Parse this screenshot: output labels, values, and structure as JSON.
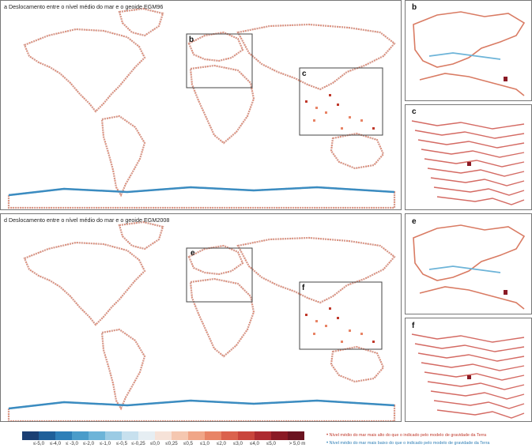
{
  "panels": {
    "a": {
      "title": "a Deslocamento entre o nível médio do mar e o geoide EGM96"
    },
    "b": {
      "label": "b"
    },
    "c": {
      "label": "c"
    },
    "d": {
      "title": "d Deslocamento entre o nível médio do mar e o geoide EGM2008"
    },
    "e": {
      "label": "e"
    },
    "f": {
      "label": "f"
    }
  },
  "inset_boxes_top": {
    "b": "b",
    "c": "c"
  },
  "inset_boxes_bottom": {
    "e": "e",
    "f": "f"
  },
  "legend": {
    "unit": "m",
    "colors": [
      "#1b3f73",
      "#1f5f99",
      "#2e7fb8",
      "#4a9cca",
      "#6db4d8",
      "#9bcbe4",
      "#c7e0ee",
      "#e6eef3",
      "#f6e2d8",
      "#f5c7b0",
      "#f0a688",
      "#e88466",
      "#db624d",
      "#c9453c",
      "#ad2a30",
      "#8a1a25",
      "#6a1320"
    ],
    "ticks": [
      "≤-5,0",
      "≤-4,0",
      "≤ -3,0",
      "≤-2,0",
      "≤-1,0",
      "≤-0,5",
      "≤-0,25",
      "≤0,0",
      "≤0,25",
      "≤0,5",
      "≤1,0",
      "≤2,0",
      "≤3,0",
      "≤4,0",
      "≤5,0",
      "> 5,0 m"
    ]
  },
  "notes": {
    "higher": "Nível médio do mar mais alto do que o indicado pelo modelo de gravidade da Terra",
    "lower": "Nível médio do mar mais baixo do que o indicado pelo modelo de gravidade da Terra",
    "higher_color": "#c0392b",
    "lower_color": "#2f7fb6"
  }
}
